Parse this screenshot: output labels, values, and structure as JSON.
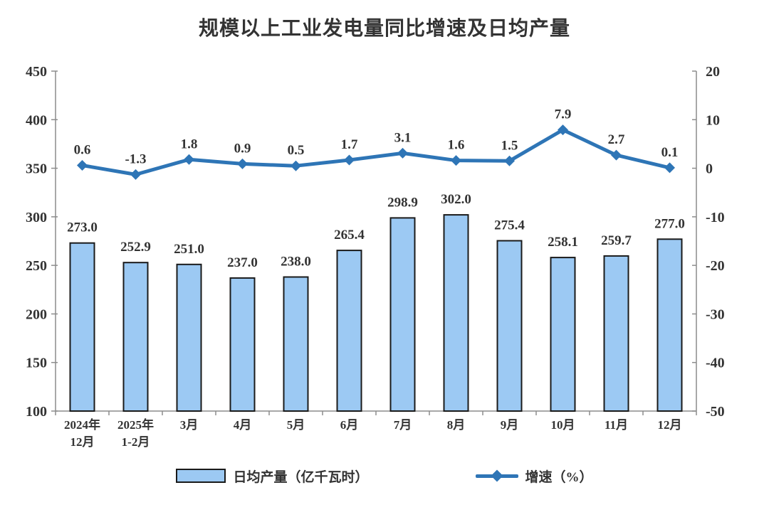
{
  "title": "规模以上工业发电量同比增速及日均产量",
  "legend": {
    "bar_label": "日均产量（亿千瓦时）",
    "line_label": "增速（%）"
  },
  "colors": {
    "background": "#FFFFFF",
    "bar_fill": "#9CC9F3",
    "bar_border": "#1A1A1A",
    "line": "#2E75B6",
    "axis_line": "#8C8C8C",
    "label_text": "#333333"
  },
  "chart_data": {
    "type": "combo",
    "title": "规模以上工业发电量同比增速及日均产量",
    "categories": [
      [
        "2024年",
        "12月"
      ],
      [
        "2025年",
        "1-2月"
      ],
      [
        "3月"
      ],
      [
        "4月"
      ],
      [
        "5月"
      ],
      [
        "6月"
      ],
      [
        "7月"
      ],
      [
        "8月"
      ],
      [
        "9月"
      ],
      [
        "10月"
      ],
      [
        "11月"
      ],
      [
        "12月"
      ]
    ],
    "series": [
      {
        "name": "日均产量（亿千瓦时）",
        "type": "bar",
        "axis": "left",
        "values": [
          273.0,
          252.9,
          251.0,
          237.0,
          238.0,
          265.4,
          298.9,
          302.0,
          275.4,
          258.1,
          259.7,
          277.0
        ]
      },
      {
        "name": "增速（%）",
        "type": "line",
        "axis": "right",
        "values": [
          0.6,
          -1.3,
          1.8,
          0.9,
          0.5,
          1.7,
          3.1,
          1.6,
          1.5,
          7.9,
          2.7,
          0.1
        ]
      }
    ],
    "left_axis": {
      "label": "",
      "min": 100,
      "max": 450,
      "step": 50,
      "ticks": [
        450,
        400,
        350,
        300,
        250,
        200,
        150,
        100
      ]
    },
    "right_axis": {
      "label": "",
      "min": -50,
      "max": 20,
      "step": 10,
      "ticks": [
        20,
        10,
        0,
        -10,
        -20,
        -30,
        -40,
        -50
      ]
    },
    "grid": false,
    "value_labels": true,
    "legend_position": "bottom"
  }
}
